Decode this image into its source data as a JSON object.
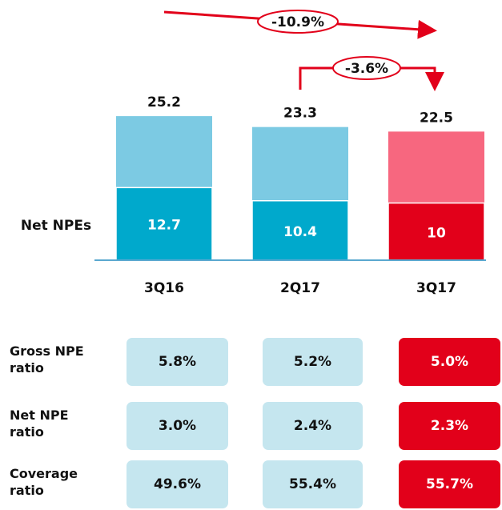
{
  "chart_data": {
    "type": "bar",
    "categories": [
      "3Q16",
      "2Q17",
      "3Q17"
    ],
    "series": [
      {
        "name": "Net NPEs",
        "values": [
          12.7,
          10.4,
          10.0
        ],
        "colors": [
          "#00a9cc",
          "#00a9cc",
          "#e2001a"
        ]
      }
    ],
    "totals": [
      25.2,
      23.3,
      22.5
    ],
    "totals_colors": [
      "#7ccae3",
      "#7ccae3",
      "#f7677f"
    ],
    "annotations": [
      "-10.9%",
      "-3.6%"
    ]
  },
  "table": {
    "rows": [
      [
        "Gross NPE ratio",
        "5.8%",
        "5.2%",
        "5.0%"
      ],
      [
        "Net NPE ratio",
        "3.0%",
        "2.4%",
        "2.3%"
      ],
      [
        "Coverage ratio",
        "49.6%",
        "55.4%",
        "55.7%"
      ]
    ]
  }
}
